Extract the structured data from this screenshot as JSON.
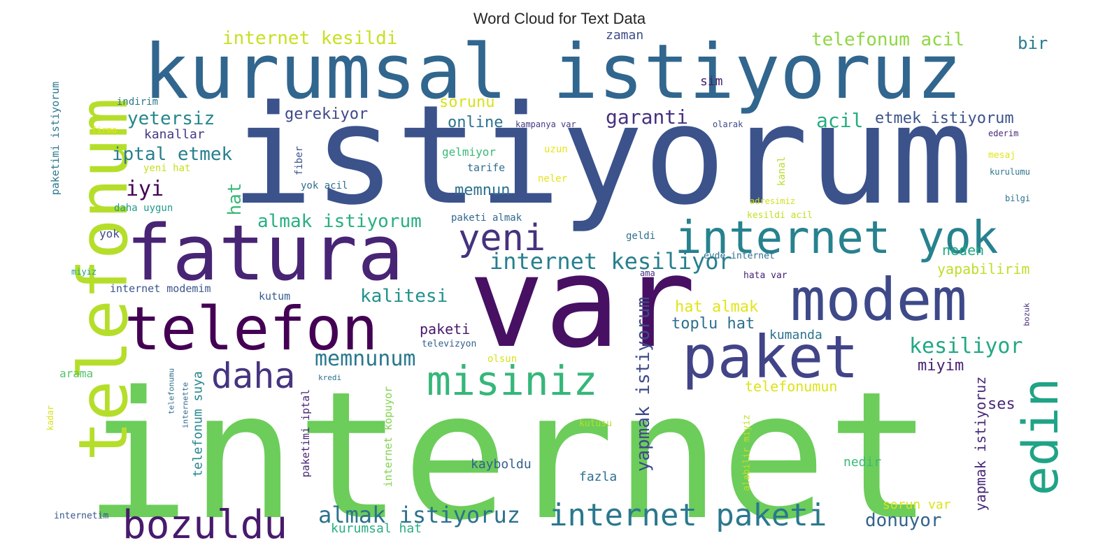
{
  "title": "Word Cloud for Text Data",
  "colormap": [
    "#440154",
    "#3b528b",
    "#21918c",
    "#5ec962",
    "#fde725"
  ],
  "words": [
    {
      "text": "internet",
      "color": "#6ccd5a"
    },
    {
      "text": "istiyorum",
      "color": "#3b528b"
    },
    {
      "text": "var",
      "color": "#471063"
    },
    {
      "text": "kurumsal istiyoruz",
      "color": "#31668e"
    },
    {
      "text": "fatura",
      "color": "#482475"
    },
    {
      "text": "telefonum",
      "color": "#b5de2b"
    },
    {
      "text": "telefon",
      "color": "#440154"
    },
    {
      "text": "modem",
      "color": "#3e4989"
    },
    {
      "text": "paket",
      "color": "#414487"
    },
    {
      "text": "internet yok",
      "color": "#26828e"
    },
    {
      "text": "edin",
      "color": "#20a386"
    },
    {
      "text": "misiniz",
      "color": "#35b779"
    },
    {
      "text": "bozuldu",
      "color": "#481a6c"
    },
    {
      "text": "internet paketi",
      "color": "#2a788e"
    },
    {
      "text": "yeni",
      "color": "#46327e"
    },
    {
      "text": "daha",
      "color": "#463480"
    },
    {
      "text": "internet kesiliyor",
      "color": "#277f8e"
    },
    {
      "text": "almak istiyoruz",
      "color": "#2c728e"
    },
    {
      "text": "kesiliyor",
      "color": "#22a884"
    },
    {
      "text": "memnunum",
      "color": "#2a788e"
    },
    {
      "text": "internet kesildi",
      "color": "#c8e020"
    },
    {
      "text": "telefonum acil",
      "color": "#8fd744"
    },
    {
      "text": "almak istiyorum",
      "color": "#29af7f"
    },
    {
      "text": "kalitesi",
      "color": "#21918c"
    },
    {
      "text": "yetersiz",
      "color": "#24878e"
    },
    {
      "text": "iptal etmek",
      "color": "#277f8e"
    },
    {
      "text": "garanti",
      "color": "#46307e"
    },
    {
      "text": "acil",
      "color": "#27ad81"
    },
    {
      "text": "etmek istiyorum",
      "color": "#3b528b"
    },
    {
      "text": "donuyor",
      "color": "#33638d"
    },
    {
      "text": "yapmak istiyorum",
      "color": "#3e4a89"
    },
    {
      "text": "yapmak istiyoruz",
      "color": "#482878"
    },
    {
      "text": "hat almak",
      "color": "#e2e418"
    },
    {
      "text": "toplu hat",
      "color": "#2e6f8e"
    },
    {
      "text": "iyi",
      "color": "#440154"
    },
    {
      "text": "bir",
      "color": "#297b8e"
    },
    {
      "text": "sorunu",
      "color": "#d8e219"
    },
    {
      "text": "online",
      "color": "#2c728e"
    },
    {
      "text": "gerekiyor",
      "color": "#3f4889"
    },
    {
      "text": "hat",
      "color": "#38b977"
    },
    {
      "text": "memnun",
      "color": "#2d708e"
    },
    {
      "text": "miyim",
      "color": "#482173"
    },
    {
      "text": "paketi",
      "color": "#48186a"
    },
    {
      "text": "neden",
      "color": "#22a884"
    },
    {
      "text": "yapabilirim",
      "color": "#bddf26"
    },
    {
      "text": "telefonumun",
      "color": "#dde318"
    },
    {
      "text": "ses",
      "color": "#482878"
    },
    {
      "text": "kanallar",
      "color": "#443983"
    },
    {
      "text": "zaman",
      "color": "#3d4d8a"
    },
    {
      "text": "sim",
      "color": "#482071"
    },
    {
      "text": "telefonum suya",
      "color": "#24868e"
    },
    {
      "text": "kumanda",
      "color": "#2c738e"
    },
    {
      "text": "kayboldu",
      "color": "#34608d"
    },
    {
      "text": "fazla",
      "color": "#2e6e8e"
    },
    {
      "text": "nedir",
      "color": "#3aba76"
    },
    {
      "text": "sorun var",
      "color": "#dde318"
    },
    {
      "text": "kurumsal hat",
      "color": "#28ae80"
    },
    {
      "text": "paketimi istiyorum",
      "color": "#2a788e"
    },
    {
      "text": "internet kopuyor",
      "color": "#7fd34e"
    },
    {
      "text": "paketimi iptal",
      "color": "#482475"
    },
    {
      "text": "yok",
      "color": "#3f4889"
    },
    {
      "text": "arama",
      "color": "#52c569"
    },
    {
      "text": "internet modemim",
      "color": "#3a548c"
    },
    {
      "text": "kutum",
      "color": "#365c8d"
    },
    {
      "text": "paketi almak",
      "color": "#31668e"
    },
    {
      "text": "yeni hat",
      "color": "#c8e020"
    },
    {
      "text": "yok acil",
      "color": "#2e6e8e"
    },
    {
      "text": "daha uygun",
      "color": "#1e9b8a"
    },
    {
      "text": "kampanya var",
      "color": "#443a83"
    },
    {
      "text": "gelmiyor",
      "color": "#3aba76"
    },
    {
      "text": "uzun",
      "color": "#e5e419"
    },
    {
      "text": "tarife",
      "color": "#2e6e8e"
    },
    {
      "text": "neler",
      "color": "#e5e419"
    },
    {
      "text": "fiber",
      "color": "#3c508b"
    },
    {
      "text": "kanal",
      "color": "#b5de2b"
    },
    {
      "text": "adresimiz",
      "color": "#d0e11c"
    },
    {
      "text": "kesildi acil",
      "color": "#c2df23"
    },
    {
      "text": "evde internet",
      "color": "#2d708e"
    },
    {
      "text": "hata var",
      "color": "#482173"
    },
    {
      "text": "geldi",
      "color": "#2e6e8e"
    },
    {
      "text": "ama",
      "color": "#46327e"
    },
    {
      "text": "televizyon",
      "color": "#34608d"
    },
    {
      "text": "olsun",
      "color": "#d5e21a"
    },
    {
      "text": "kredi",
      "color": "#2c728e"
    },
    {
      "text": "kutusu",
      "color": "#b5de2b"
    },
    {
      "text": "alabilir miyiz",
      "color": "#c2df23"
    },
    {
      "text": "miyiz",
      "color": "#1fa088"
    },
    {
      "text": "telefonumu",
      "color": "#2d708e"
    },
    {
      "text": "internette",
      "color": "#31678e"
    },
    {
      "text": "kadar",
      "color": "#d8e219"
    },
    {
      "text": "internetim",
      "color": "#39568c"
    },
    {
      "text": "indirim",
      "color": "#2a788e"
    },
    {
      "text": "firma",
      "color": "#e5e419"
    },
    {
      "text": "olarak",
      "color": "#3e4989"
    },
    {
      "text": "ederim",
      "color": "#482878"
    },
    {
      "text": "mesaj",
      "color": "#e2e418"
    },
    {
      "text": "kurulumu",
      "color": "#2c738e"
    },
    {
      "text": "bilgi",
      "color": "#2c728e"
    },
    {
      "text": "bozuk",
      "color": "#472d7b"
    }
  ]
}
